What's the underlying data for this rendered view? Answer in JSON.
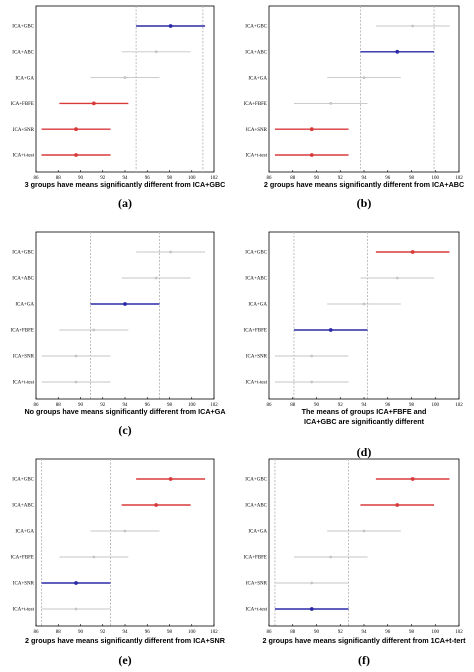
{
  "colors": {
    "selected": "#2a2aa8",
    "different": "#d83a3a",
    "neutral": "#c4c4c4",
    "frame": "#000000",
    "guide": "#b8b8b8"
  },
  "chart_data": [
    {
      "type": "scatter",
      "panel_label": "(a)",
      "caption": [
        "3 groups have means significantly different from ICA+GBC"
      ],
      "xlim": [
        86,
        102
      ],
      "x_ticks": [
        "86",
        "88",
        "90",
        "92",
        "94",
        "96",
        "98",
        "100",
        "102"
      ],
      "categories": [
        "ICA+GBC",
        "ICA+ABC",
        "ICA+GA",
        "ICA+FBFE",
        "ICA+SNR",
        "ICA+t-test"
      ],
      "guides": [
        95,
        101
      ],
      "series": [
        {
          "mean": 98.1,
          "low": 95.0,
          "high": 101.2,
          "status": "selected"
        },
        {
          "mean": 96.8,
          "low": 93.7,
          "high": 99.9,
          "status": "neutral"
        },
        {
          "mean": 94.0,
          "low": 90.9,
          "high": 97.1,
          "status": "neutral"
        },
        {
          "mean": 91.2,
          "low": 88.1,
          "high": 94.3,
          "status": "different"
        },
        {
          "mean": 89.6,
          "low": 86.5,
          "high": 92.7,
          "status": "different"
        },
        {
          "mean": 89.6,
          "low": 86.5,
          "high": 92.7,
          "status": "different"
        }
      ]
    },
    {
      "type": "scatter",
      "panel_label": "(b)",
      "caption": [
        "2 groups have means significantly different from ICA+ABC"
      ],
      "xlim": [
        86,
        102
      ],
      "x_ticks": [
        "86",
        "88",
        "90",
        "92",
        "94",
        "96",
        "98",
        "100",
        "102"
      ],
      "categories": [
        "ICA+GBC",
        "ICA+ABC",
        "ICA+GA",
        "ICA+FBFE",
        "ICA+SNR",
        "ICA+t-test"
      ],
      "guides": [
        93.7,
        99.9
      ],
      "series": [
        {
          "mean": 98.1,
          "low": 95.0,
          "high": 101.2,
          "status": "neutral"
        },
        {
          "mean": 96.8,
          "low": 93.7,
          "high": 99.9,
          "status": "selected"
        },
        {
          "mean": 94.0,
          "low": 90.9,
          "high": 97.1,
          "status": "neutral"
        },
        {
          "mean": 91.2,
          "low": 88.1,
          "high": 94.3,
          "status": "neutral"
        },
        {
          "mean": 89.6,
          "low": 86.5,
          "high": 92.7,
          "status": "different"
        },
        {
          "mean": 89.6,
          "low": 86.5,
          "high": 92.7,
          "status": "different"
        }
      ]
    },
    {
      "type": "scatter",
      "panel_label": "(c)",
      "caption": [
        "No groups have means significantly different from ICA+GA"
      ],
      "xlim": [
        86,
        102
      ],
      "x_ticks": [
        "86",
        "88",
        "90",
        "92",
        "94",
        "96",
        "98",
        "100",
        "102"
      ],
      "categories": [
        "ICA+GBC",
        "ICA+ABC",
        "ICA+GA",
        "ICA+FBFE",
        "ICA+SNR",
        "ICA+t-test"
      ],
      "guides": [
        90.9,
        97.1
      ],
      "series": [
        {
          "mean": 98.1,
          "low": 95.0,
          "high": 101.2,
          "status": "neutral"
        },
        {
          "mean": 96.8,
          "low": 93.7,
          "high": 99.9,
          "status": "neutral"
        },
        {
          "mean": 94.0,
          "low": 90.9,
          "high": 97.1,
          "status": "selected"
        },
        {
          "mean": 91.2,
          "low": 88.1,
          "high": 94.3,
          "status": "neutral"
        },
        {
          "mean": 89.6,
          "low": 86.5,
          "high": 92.7,
          "status": "neutral"
        },
        {
          "mean": 89.6,
          "low": 86.5,
          "high": 92.7,
          "status": "neutral"
        }
      ]
    },
    {
      "type": "scatter",
      "panel_label": "(d)",
      "caption": [
        "The means of groups ICA+FBFE and",
        "ICA+GBC are significantly different"
      ],
      "xlim": [
        86,
        102
      ],
      "x_ticks": [
        "86",
        "88",
        "90",
        "92",
        "94",
        "96",
        "98",
        "100",
        "102"
      ],
      "categories": [
        "ICA+GBC",
        "ICA+ABC",
        "ICA+GA",
        "ICA+FBFE",
        "ICA+SNR",
        "ICA+t-test"
      ],
      "guides": [
        88.1,
        94.3
      ],
      "series": [
        {
          "mean": 98.1,
          "low": 95.0,
          "high": 101.2,
          "status": "different"
        },
        {
          "mean": 96.8,
          "low": 93.7,
          "high": 99.9,
          "status": "neutral"
        },
        {
          "mean": 94.0,
          "low": 90.9,
          "high": 97.1,
          "status": "neutral"
        },
        {
          "mean": 91.2,
          "low": 88.1,
          "high": 94.3,
          "status": "selected"
        },
        {
          "mean": 89.6,
          "low": 86.5,
          "high": 92.7,
          "status": "neutral"
        },
        {
          "mean": 89.6,
          "low": 86.5,
          "high": 92.7,
          "status": "neutral"
        }
      ]
    },
    {
      "type": "scatter",
      "panel_label": "(e)",
      "caption": [
        "2 groups have means significantly different from ICA+SNR"
      ],
      "xlim": [
        86,
        102
      ],
      "x_ticks": [
        "86",
        "88",
        "90",
        "92",
        "94",
        "96",
        "98",
        "100",
        "102"
      ],
      "categories": [
        "ICA+GBC",
        "ICA+ABC",
        "ICA+GA",
        "ICA+FBFE",
        "ICA+SNR",
        "ICA+t-test"
      ],
      "guides": [
        86.5,
        92.7
      ],
      "series": [
        {
          "mean": 98.1,
          "low": 95.0,
          "high": 101.2,
          "status": "different"
        },
        {
          "mean": 96.8,
          "low": 93.7,
          "high": 99.9,
          "status": "different"
        },
        {
          "mean": 94.0,
          "low": 90.9,
          "high": 97.1,
          "status": "neutral"
        },
        {
          "mean": 91.2,
          "low": 88.1,
          "high": 94.3,
          "status": "neutral"
        },
        {
          "mean": 89.6,
          "low": 86.5,
          "high": 92.7,
          "status": "selected"
        },
        {
          "mean": 89.6,
          "low": 86.5,
          "high": 92.7,
          "status": "neutral"
        }
      ]
    },
    {
      "type": "scatter",
      "panel_label": "(f)",
      "caption": [
        "2 groups have means significantly different from 1CA+t-tert"
      ],
      "xlim": [
        86,
        102
      ],
      "x_ticks": [
        "86",
        "88",
        "90",
        "92",
        "94",
        "96",
        "98",
        "100",
        "102"
      ],
      "categories": [
        "ICA+GBC",
        "ICA+ABC",
        "ICA+GA",
        "ICA+FBFE",
        "ICA+SNR",
        "ICA+t-test"
      ],
      "guides": [
        86.5,
        92.7
      ],
      "series": [
        {
          "mean": 98.1,
          "low": 95.0,
          "high": 101.2,
          "status": "different"
        },
        {
          "mean": 96.8,
          "low": 93.7,
          "high": 99.9,
          "status": "different"
        },
        {
          "mean": 94.0,
          "low": 90.9,
          "high": 97.1,
          "status": "neutral"
        },
        {
          "mean": 91.2,
          "low": 88.1,
          "high": 94.3,
          "status": "neutral"
        },
        {
          "mean": 89.6,
          "low": 86.5,
          "high": 92.7,
          "status": "neutral"
        },
        {
          "mean": 89.6,
          "low": 86.5,
          "high": 92.7,
          "status": "selected"
        }
      ]
    }
  ]
}
